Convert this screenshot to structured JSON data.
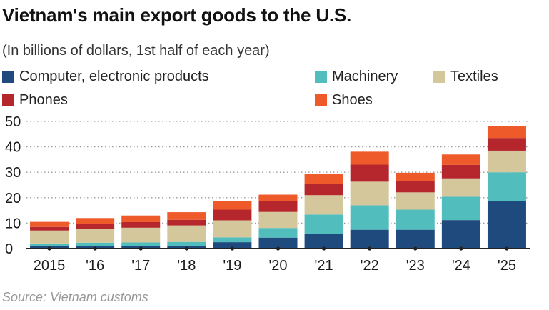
{
  "header": {
    "title": "Vietnam's main export goods to the U.S.",
    "subtitle": "(In billions of dollars, 1st half of each year)"
  },
  "source": "Source: Vietnam customs",
  "colors": {
    "computer": "#1e4a7e",
    "machinery": "#52bdbd",
    "textiles": "#d5c79c",
    "phones": "#b5272d",
    "shoes": "#ee5a2a",
    "grid": "#9a9a9a",
    "axis": "#222222"
  },
  "chart_data": {
    "type": "bar",
    "stacked": true,
    "title": "Vietnam's main export goods to the U.S.",
    "subtitle": "(In billions of dollars, 1st half of each year)",
    "xlabel": "",
    "ylabel": "",
    "ylim": [
      0,
      50
    ],
    "yticks": [
      0,
      10,
      20,
      30,
      40,
      50
    ],
    "grid": "horizontal dotted",
    "legend": "top",
    "categories": [
      "2015",
      "'16",
      "'17",
      "'18",
      "'19",
      "'20",
      "'21",
      "'22",
      "'23",
      "'24",
      "'25"
    ],
    "series": [
      {
        "name": "Computer, electronic products",
        "key": "computer",
        "values": [
          1.0,
          1.0,
          1.0,
          1.0,
          2.5,
          4.3,
          5.8,
          7.4,
          7.4,
          11.2,
          18.6
        ]
      },
      {
        "name": "Machinery",
        "key": "machinery",
        "values": [
          1.0,
          1.3,
          1.4,
          1.6,
          1.9,
          3.8,
          7.6,
          9.6,
          7.9,
          9.2,
          11.4
        ]
      },
      {
        "name": "Textiles",
        "key": "textiles",
        "values": [
          5.1,
          5.4,
          5.8,
          6.5,
          6.7,
          6.3,
          7.6,
          9.3,
          6.8,
          7.2,
          8.5
        ]
      },
      {
        "name": "Phones",
        "key": "phones",
        "values": [
          1.4,
          2.0,
          2.2,
          2.2,
          4.2,
          4.3,
          4.3,
          6.7,
          4.5,
          5.3,
          5.0
        ]
      },
      {
        "name": "Shoes",
        "key": "shoes",
        "values": [
          2.0,
          2.3,
          2.6,
          3.0,
          3.4,
          2.5,
          4.2,
          5.1,
          3.2,
          4.1,
          4.6
        ]
      }
    ]
  }
}
